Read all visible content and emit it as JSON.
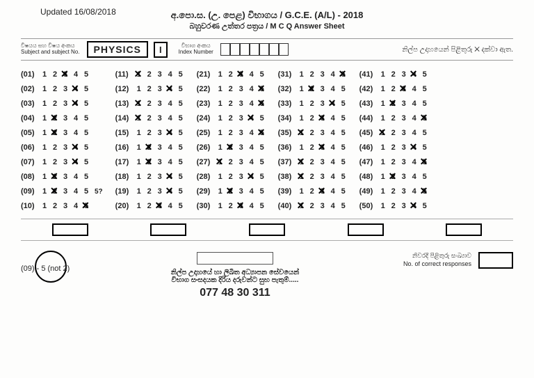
{
  "updated": "Updated 16/08/2018",
  "title_main": "අ.පො.ස. (උ. පෙළ) විභාගය / G.C.E. (A/L) - 2018",
  "title_sub": "බහුවරණ උත්තර පත්‍රය / M C Q Answer Sheet",
  "subject_label_si": "විෂයය සහ විෂය අංකය",
  "subject_label_en": "Subject and subject No.",
  "subject": "PHYSICS",
  "part": "I",
  "index_label_si": "විභාග අංකය",
  "index_label_en": "Index Number",
  "index_cells": 7,
  "instruction": "නිල්ප උදාහයෙන් පිළිතුරු ✕ දක්වා ඇත.",
  "options_per_q": 5,
  "columns": [
    {
      "start": 1,
      "answers": [
        3,
        4,
        4,
        2,
        2,
        4,
        4,
        2,
        2,
        5
      ]
    },
    {
      "start": 11,
      "answers": [
        1,
        4,
        1,
        1,
        4,
        2,
        2,
        4,
        4,
        3
      ]
    },
    {
      "start": 21,
      "answers": [
        3,
        5,
        5,
        4,
        5,
        2,
        1,
        4,
        2,
        3
      ]
    },
    {
      "start": 31,
      "answers": [
        5,
        2,
        4,
        3,
        1,
        3,
        1,
        1,
        3,
        1
      ]
    },
    {
      "start": 41,
      "answers": [
        4,
        3,
        2,
        5,
        1,
        4,
        5,
        2,
        5,
        4
      ]
    }
  ],
  "q9_extra": "5?",
  "correction": "(09) - 5 (not 2)",
  "footer_sign_lines": [
    "නිල්ප උදාහයේ හා ලිඛිත අධ්‍යාපන සේවයෙන්",
    "විභාග සංසදයක දිරිය දරුවන්ට සුභ පැතුම්....."
  ],
  "phone": "077 48 30 311",
  "resp_si": "නිවරදි පිළිතුරු සංඛ්‍යාව",
  "resp_en": "No. of correct responses",
  "colors": {
    "text": "#222222",
    "bg": "#fdfdfc",
    "border": "#000000"
  }
}
